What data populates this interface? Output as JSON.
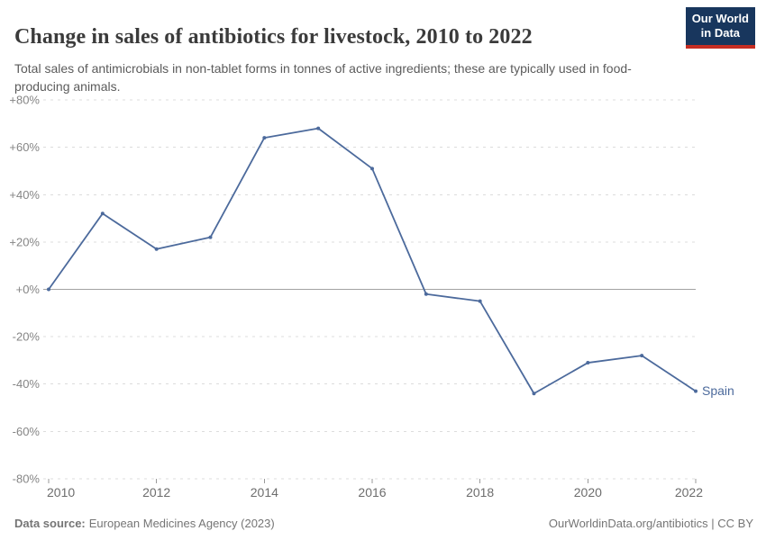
{
  "header": {
    "title": "Change in sales of antibiotics for livestock, 2010 to 2022",
    "subtitle": "Total sales of antimicrobials in non-tablet forms in tonnes of active ingredients; these are typically used in food-producing animals.",
    "logo": {
      "line1": "Our World",
      "line2": "in Data",
      "bg_color": "#18365d",
      "accent_color": "#c62d22"
    }
  },
  "chart_data": {
    "type": "line",
    "title": "Change in sales of antibiotics for livestock, 2010 to 2022",
    "xlabel": "",
    "ylabel": "",
    "x": [
      2010,
      2011,
      2012,
      2013,
      2014,
      2015,
      2016,
      2017,
      2018,
      2019,
      2020,
      2021,
      2022
    ],
    "series": [
      {
        "name": "Spain",
        "color": "#4C6A9C",
        "values": [
          0,
          32,
          17,
          22,
          64,
          68,
          51,
          -2,
          -5,
          -44,
          -31,
          -28,
          -43
        ]
      }
    ],
    "xlim": [
      2010,
      2022
    ],
    "ylim": [
      -80,
      80
    ],
    "y_ticks": [
      {
        "v": 80,
        "label": "+80%"
      },
      {
        "v": 60,
        "label": "+60%"
      },
      {
        "v": 40,
        "label": "+40%"
      },
      {
        "v": 20,
        "label": "+20%"
      },
      {
        "v": 0,
        "label": "+0%"
      },
      {
        "v": -20,
        "label": "-20%"
      },
      {
        "v": -40,
        "label": "-40%"
      },
      {
        "v": -60,
        "label": "-60%"
      },
      {
        "v": -80,
        "label": "-80%"
      }
    ],
    "x_ticks": [
      {
        "v": 2010,
        "label": "2010"
      },
      {
        "v": 2012,
        "label": "2012"
      },
      {
        "v": 2014,
        "label": "2014"
      },
      {
        "v": 2016,
        "label": "2016"
      },
      {
        "v": 2018,
        "label": "2018"
      },
      {
        "v": 2020,
        "label": "2020"
      },
      {
        "v": 2022,
        "label": "2022"
      }
    ],
    "grid": "horizontal-dashed",
    "zero_line": true,
    "legend_position": "end-of-line",
    "end_label": "Spain"
  },
  "footer": {
    "source_label": "Data source:",
    "source_text": "European Medicines Agency (2023)",
    "license_text": "OurWorldinData.org/antibiotics | CC BY"
  }
}
